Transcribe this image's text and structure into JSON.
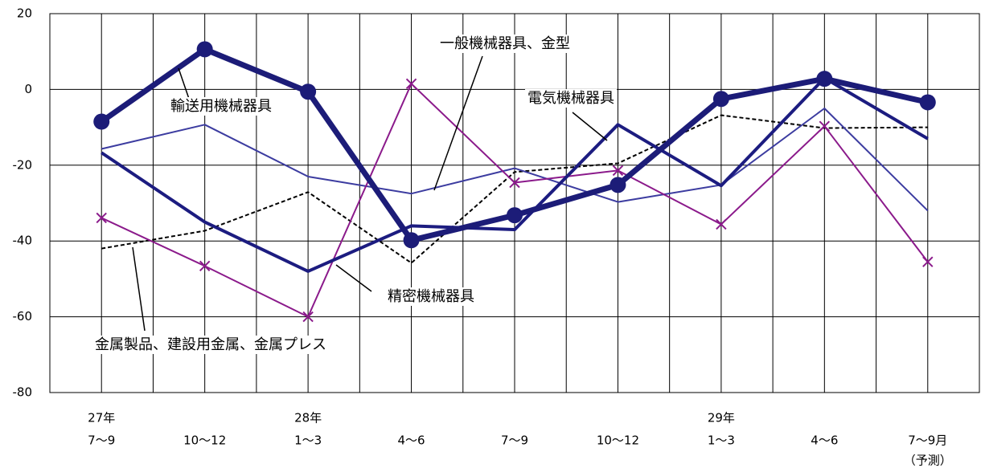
{
  "chart_data": {
    "type": "line",
    "categories": [
      "7～9",
      "10～12",
      "1～3",
      "4～6",
      "7～9",
      "10～12",
      "1～3",
      "4～6",
      "7～9月"
    ],
    "category_years": [
      "27年",
      null,
      "28年",
      null,
      null,
      null,
      "29年",
      null,
      null
    ],
    "category_notes": [
      null,
      null,
      null,
      null,
      null,
      null,
      null,
      null,
      "（予測）"
    ],
    "ylim": [
      -80,
      20
    ],
    "yticks": [
      -80,
      -60,
      -40,
      -20,
      0,
      20
    ],
    "grid": true,
    "series": [
      {
        "name": "輸送用機械器具",
        "color": "#1c1c78",
        "values": [
          -8.5,
          10.6,
          -0.6,
          -39.8,
          -33.2,
          -25.2,
          -2.5,
          2.8,
          -3.4
        ]
      },
      {
        "name": "電気機械器具",
        "color": "#1c1c80",
        "values": [
          -16.7,
          -35,
          -48,
          -36,
          -37,
          -9.3,
          -25.4,
          3,
          -13
        ]
      },
      {
        "name": "一般機械器具、金型",
        "color": "#3c3ca0",
        "values": [
          -15.7,
          -9.3,
          -23,
          -27.5,
          -20.8,
          -29.7,
          -25.2,
          -5,
          -32
        ]
      },
      {
        "name": "精密機械器具",
        "color": "#8b1a8b",
        "values": [
          -33.9,
          -46.6,
          -60,
          1.5,
          -24.6,
          -21.4,
          -35.6,
          -9.7,
          -45.5
        ]
      },
      {
        "name": "金属製品、建設用金属、金属プレス",
        "color": "#000000",
        "values": [
          -42,
          -37.3,
          -27.1,
          -45.8,
          -21.8,
          -19.5,
          -6.8,
          -10.2,
          -10
        ]
      }
    ]
  }
}
